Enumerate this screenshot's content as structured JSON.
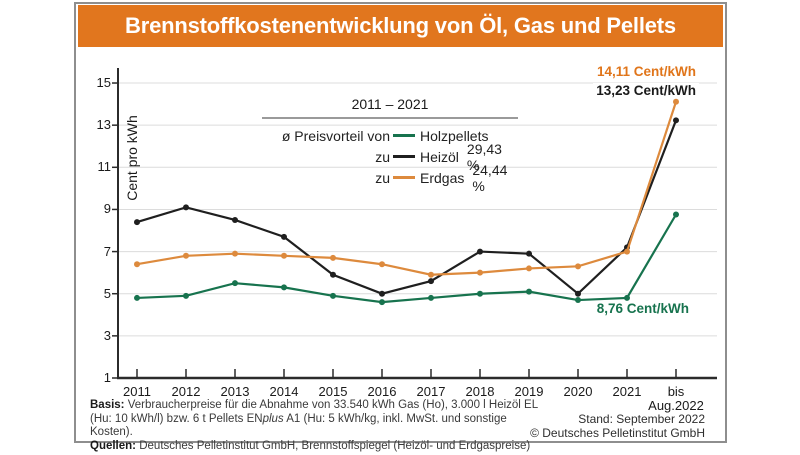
{
  "header": {
    "title": "Brennstoffkostenentwicklung von Öl, Gas und Pellets",
    "bg": "#e1761e",
    "fg": "#ffffff"
  },
  "legend": {
    "period": "2011 – 2021",
    "prefix": "ø Preisvorteil von",
    "zu": "zu",
    "rows": [
      {
        "label": "Holzpellets",
        "value": "",
        "color": "#17734e"
      },
      {
        "label": "Heizöl",
        "value": "29,43 %",
        "color": "#1f1f1f"
      },
      {
        "label": "Erdgas",
        "value": "24,44 %",
        "color": "#dd8a3d"
      }
    ]
  },
  "annotations": {
    "gas_text": "14,11 Cent/kWh",
    "gas_color": "#e0751a",
    "oil_text": "13,23 Cent/kWh",
    "oil_color": "#1a1a1a",
    "pellets_text": "8,76 Cent/kWh",
    "pellets_color": "#17734e"
  },
  "footer": {
    "basis_label": "Basis:",
    "basis_line1": "Verbraucherpreise für die Abnahme von 33.540 kWh Gas (Ho), 3.000 l Heizöl EL",
    "basis_line2_pre": "(Hu: 10 kWh/l) bzw. 6 t Pellets EN",
    "basis_line2_italic": "plus",
    "basis_line2_post": " A1 (Hu: 5 kWh/kg, inkl. MwSt. und sonstige Kosten).",
    "quellen_label": "Quellen:",
    "quellen_text": "Deutsches Pelletinstitut GmbH, Brennstoffspiegel (Heizöl- und Erdgaspreise)",
    "stand": "Stand: September 2022",
    "copyright": "© Deutsches Pelletinstitut GmbH"
  },
  "chart_data": {
    "type": "line",
    "ylabel": "Cent pro kWh",
    "ylim": [
      1,
      15
    ],
    "yticks": [
      1,
      3,
      5,
      7,
      9,
      11,
      13,
      15
    ],
    "grid": "horizontal",
    "legend_position": "top-center",
    "axis_color": "#2b2b2b",
    "grid_color": "#dcdcdc",
    "categories": [
      "2011",
      "2012",
      "2013",
      "2014",
      "2015",
      "2016",
      "2017",
      "2018",
      "2019",
      "2020",
      "2021",
      "bis\nAug.2022"
    ],
    "series": [
      {
        "name": "Holzpellets",
        "color": "#17734e",
        "values": [
          4.8,
          4.9,
          5.5,
          5.3,
          4.9,
          4.6,
          4.8,
          5.0,
          5.1,
          4.7,
          4.8,
          8.76
        ]
      },
      {
        "name": "Heizöl",
        "color": "#1f1f1f",
        "values": [
          8.4,
          9.1,
          8.5,
          7.7,
          5.9,
          5.0,
          5.6,
          7.0,
          6.9,
          5.0,
          7.2,
          13.23
        ]
      },
      {
        "name": "Erdgas",
        "color": "#dd8a3d",
        "values": [
          6.4,
          6.8,
          6.9,
          6.8,
          6.7,
          6.4,
          5.9,
          6.0,
          6.2,
          6.3,
          7.0,
          14.11
        ]
      }
    ]
  }
}
